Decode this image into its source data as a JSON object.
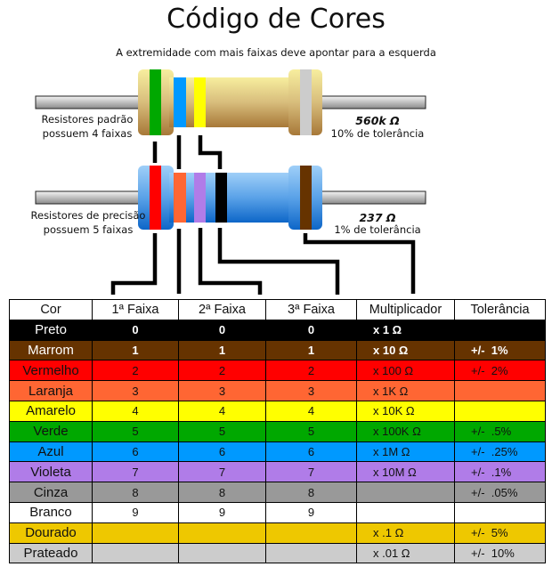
{
  "title": "Código de Cores",
  "subtitle": "A extremidade com mais faixas deve apontar para a esquerda",
  "standard": {
    "label_line1": "Resistores padrão",
    "label_line2": "possuem 4 faixas",
    "value": "560k Ω",
    "tolerance": "10% de tolerância",
    "bands": [
      "#00a800",
      "#0099ff",
      "#ffff00",
      "#cccccc"
    ]
  },
  "precision": {
    "label_line1": "Resistores de precisão",
    "label_line2": "possuem 5 faixas",
    "value": "237 Ω",
    "tolerance": "1% de tolerância",
    "bands": [
      "#ff0000",
      "#ff6633",
      "#b07ce8",
      "#000000",
      "#663300"
    ]
  },
  "table": {
    "headers": [
      "Cor",
      "1ª Faixa",
      "2ª Faixa",
      "3ª Faixa",
      "Multiplicador",
      "Tolerância"
    ],
    "rows": [
      {
        "cor": "Preto",
        "f1": "0",
        "f2": "0",
        "f3": "0",
        "mult": "x 1 Ω",
        "tol": "",
        "bg": "#000000",
        "fg": "#ffffff",
        "bold": true
      },
      {
        "cor": "Marrom",
        "f1": "1",
        "f2": "1",
        "f3": "1",
        "mult": "x 10 Ω",
        "tol": "+/-  1%",
        "bg": "#663300",
        "fg": "#ffffff",
        "bold": true
      },
      {
        "cor": "Vermelho",
        "f1": "2",
        "f2": "2",
        "f3": "2",
        "mult": "x 100 Ω",
        "tol": "+/-  2%",
        "bg": "#ff0000",
        "fg": "#111111",
        "bold": false
      },
      {
        "cor": "Laranja",
        "f1": "3",
        "f2": "3",
        "f3": "3",
        "mult": "x 1K Ω",
        "tol": "",
        "bg": "#ff6633",
        "fg": "#111111",
        "bold": false
      },
      {
        "cor": "Amarelo",
        "f1": "4",
        "f2": "4",
        "f3": "4",
        "mult": "x 10K Ω",
        "tol": "",
        "bg": "#ffff00",
        "fg": "#111111",
        "bold": false
      },
      {
        "cor": "Verde",
        "f1": "5",
        "f2": "5",
        "f3": "5",
        "mult": "x 100K Ω",
        "tol": "+/-  .5%",
        "bg": "#00a800",
        "fg": "#111111",
        "bold": false
      },
      {
        "cor": "Azul",
        "f1": "6",
        "f2": "6",
        "f3": "6",
        "mult": "x 1M Ω",
        "tol": "+/-  .25%",
        "bg": "#0099ff",
        "fg": "#111111",
        "bold": false
      },
      {
        "cor": "Violeta",
        "f1": "7",
        "f2": "7",
        "f3": "7",
        "mult": "x 10M Ω",
        "tol": "+/-  .1%",
        "bg": "#b07ce8",
        "fg": "#111111",
        "bold": false
      },
      {
        "cor": "Cinza",
        "f1": "8",
        "f2": "8",
        "f3": "8",
        "mult": "",
        "tol": "+/-  .05%",
        "bg": "#999999",
        "fg": "#111111",
        "bold": false
      },
      {
        "cor": "Branco",
        "f1": "9",
        "f2": "9",
        "f3": "9",
        "mult": "",
        "tol": "",
        "bg": "#ffffff",
        "fg": "#111111",
        "bold": false
      },
      {
        "cor": "Dourado",
        "f1": "",
        "f2": "",
        "f3": "",
        "mult": "x .1 Ω",
        "tol": "+/-  5%",
        "bg": "#eec800",
        "fg": "#111111",
        "bold": false
      },
      {
        "cor": "Prateado",
        "f1": "",
        "f2": "",
        "f3": "",
        "mult": "x .01 Ω",
        "tol": "+/-  10%",
        "bg": "#cccccc",
        "fg": "#111111",
        "bold": false
      }
    ]
  }
}
